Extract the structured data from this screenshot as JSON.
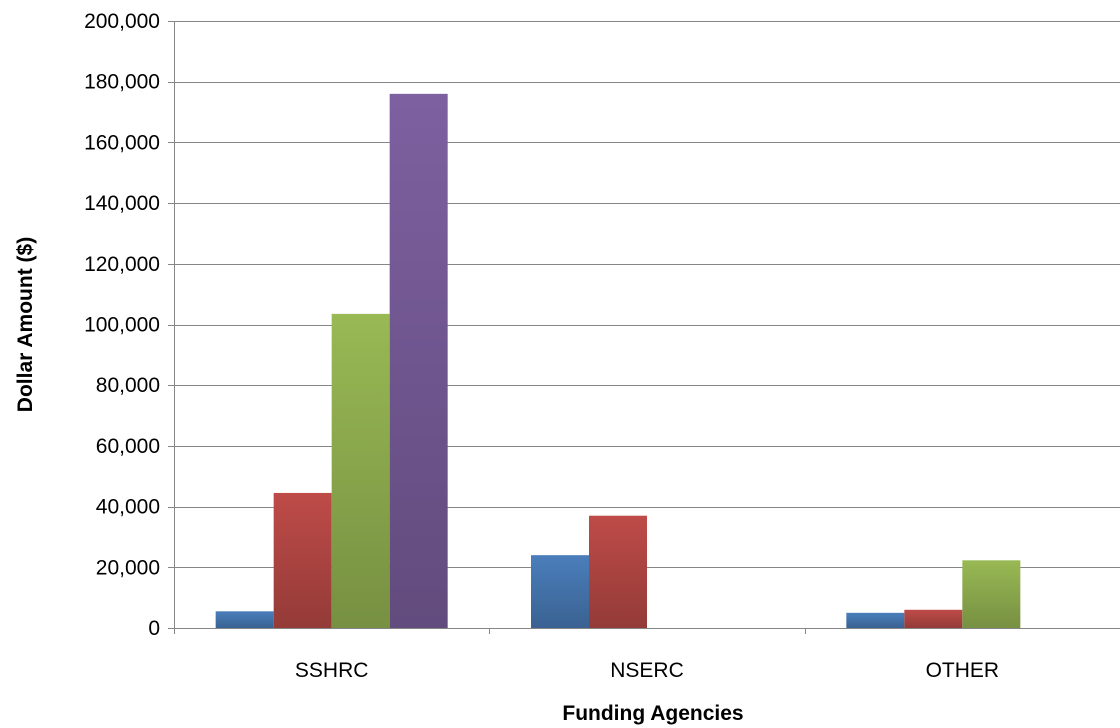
{
  "chart_data": {
    "type": "bar",
    "title": "",
    "xlabel": "Funding Agencies",
    "ylabel": "Dollar Amount ($)",
    "categories": [
      "SSHRC",
      "NSERC",
      "OTHER"
    ],
    "ylim": [
      0,
      200000
    ],
    "yticks": [
      0,
      20000,
      40000,
      60000,
      80000,
      100000,
      120000,
      140000,
      160000,
      180000,
      200000
    ],
    "ytick_labels": [
      "0",
      "20,000",
      "40,000",
      "60,000",
      "80,000",
      "100,000",
      "120,000",
      "140,000",
      "160,000",
      "180,000",
      "200,000"
    ],
    "grid": true,
    "legend": "none",
    "series": [
      {
        "color": "#4a7ebb",
        "values": [
          5500,
          24000,
          5000
        ]
      },
      {
        "color": "#be4b48",
        "values": [
          44500,
          37000,
          6000
        ]
      },
      {
        "color": "#98b954",
        "values": [
          103500,
          0,
          22300
        ]
      },
      {
        "color": "#7d60a0",
        "values": [
          176000,
          0,
          0
        ]
      }
    ]
  }
}
